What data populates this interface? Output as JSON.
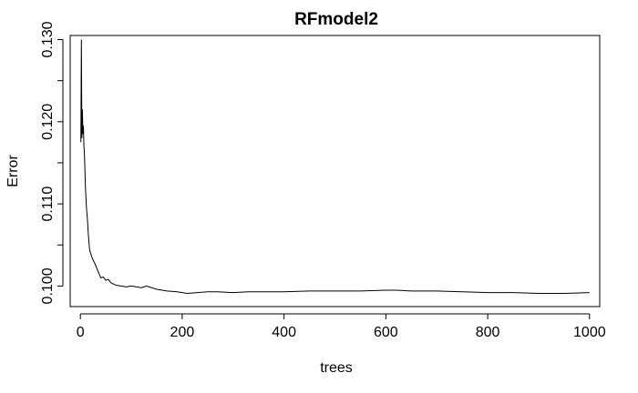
{
  "chart_data": {
    "type": "line",
    "title": "RFmodel2",
    "xlabel": "trees",
    "ylabel": "Error",
    "xlim": [
      -20,
      1020
    ],
    "ylim": [
      0.0975,
      0.1305
    ],
    "xticks": [
      0,
      200,
      400,
      600,
      800,
      1000
    ],
    "xtick_labels": [
      "0",
      "200",
      "400",
      "600",
      "800",
      "1000"
    ],
    "yticks": [
      0.1,
      0.11,
      0.12,
      0.13
    ],
    "ytick_labels": [
      "0.100",
      "0.110",
      "0.120",
      "0.130"
    ],
    "grid": false,
    "color": "#000000",
    "series": [
      {
        "x": [
          1,
          2,
          3,
          4,
          5,
          6,
          7,
          8,
          10,
          12,
          14,
          16,
          18,
          20,
          24,
          28,
          32,
          36,
          40,
          45,
          50,
          55,
          60,
          70,
          80,
          90,
          100,
          110,
          120,
          130,
          140,
          150,
          170,
          190,
          210,
          230,
          250,
          270,
          300,
          330,
          360,
          400,
          450,
          500,
          550,
          600,
          620,
          650,
          700,
          750,
          800,
          850,
          900,
          950,
          1000
        ],
        "y": [
          0.1175,
          0.13,
          0.118,
          0.1215,
          0.1185,
          0.1195,
          0.117,
          0.116,
          0.112,
          0.1095,
          0.108,
          0.106,
          0.1045,
          0.104,
          0.1033,
          0.1028,
          0.1022,
          0.1016,
          0.101,
          0.1011,
          0.1007,
          0.1008,
          0.1004,
          0.1001,
          0.1,
          0.0999,
          0.1,
          0.0999,
          0.0998,
          0.1,
          0.0998,
          0.0996,
          0.0994,
          0.0993,
          0.0991,
          0.0992,
          0.0993,
          0.0993,
          0.0992,
          0.0993,
          0.0993,
          0.0993,
          0.0994,
          0.0994,
          0.0994,
          0.0995,
          0.0995,
          0.0994,
          0.0994,
          0.0993,
          0.0992,
          0.0992,
          0.0991,
          0.0991,
          0.0992
        ]
      }
    ]
  }
}
